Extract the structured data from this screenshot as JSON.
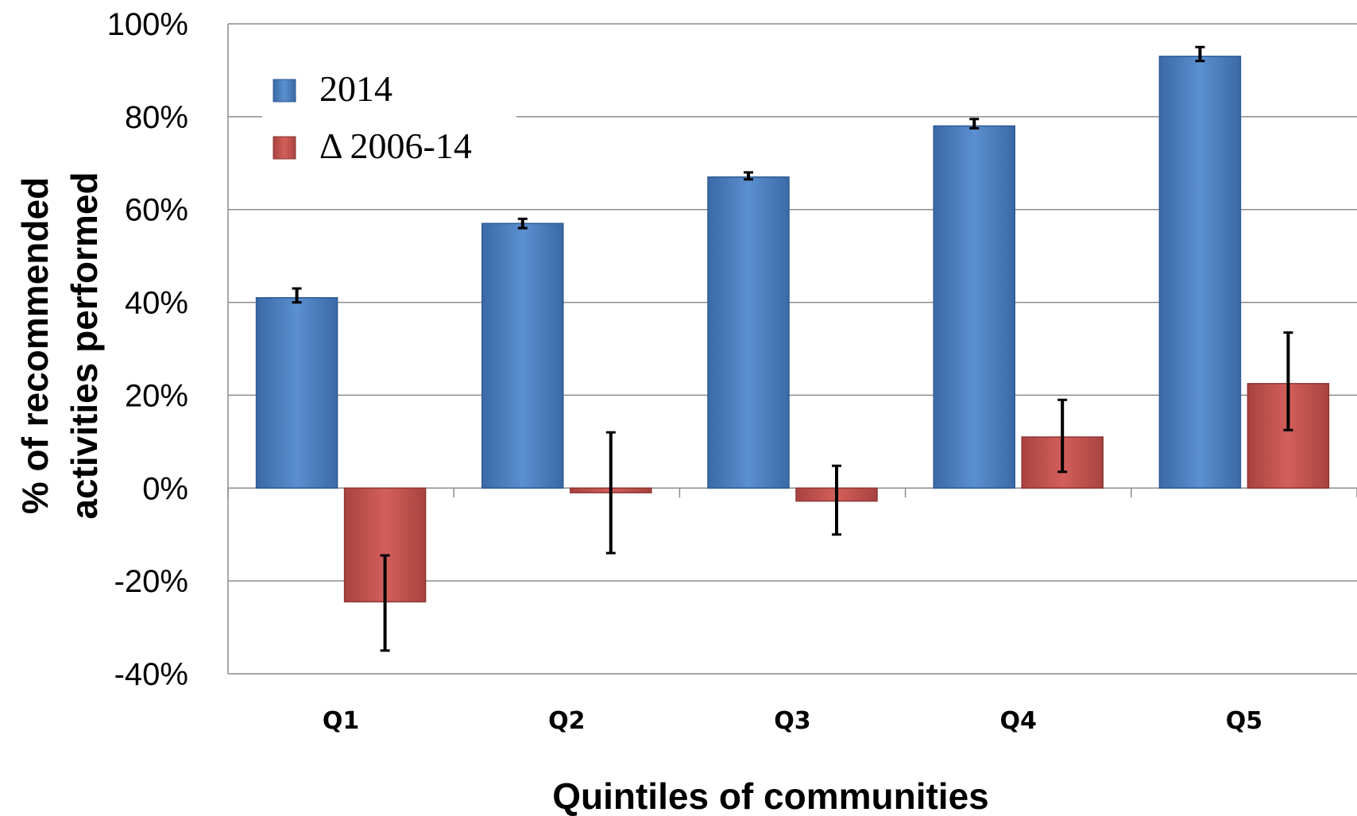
{
  "chart_data": {
    "type": "bar",
    "title": "",
    "xlabel": "Quintiles of communities",
    "ylabel_lines": [
      "% of recommended",
      "activities performed"
    ],
    "categories": [
      "Q1",
      "Q2",
      "Q3",
      "Q4",
      "Q5"
    ],
    "ylim": [
      -0.4,
      1.0
    ],
    "yticks": [
      -0.4,
      -0.2,
      0,
      0.2,
      0.4,
      0.6,
      0.8,
      1.0
    ],
    "ytick_labels": [
      "-40%",
      "-20%",
      "0%",
      "20%",
      "40%",
      "60%",
      "80%",
      "100%"
    ],
    "grid": "horizontal",
    "legend_position": "top-left",
    "series": [
      {
        "name": "2014",
        "color": "#4f81bd",
        "values": [
          0.41,
          0.57,
          0.67,
          0.78,
          0.93
        ],
        "error_low": [
          0.4,
          0.56,
          0.665,
          0.775,
          0.92
        ],
        "error_high": [
          0.43,
          0.58,
          0.68,
          0.795,
          0.95
        ]
      },
      {
        "name": "Δ 2006-14",
        "color": "#c0504d",
        "values": [
          -0.245,
          -0.01,
          -0.028,
          0.11,
          0.225
        ],
        "error_low": [
          -0.35,
          -0.14,
          -0.1,
          0.035,
          0.125
        ],
        "error_high": [
          -0.145,
          0.12,
          0.048,
          0.19,
          0.335
        ]
      }
    ]
  }
}
